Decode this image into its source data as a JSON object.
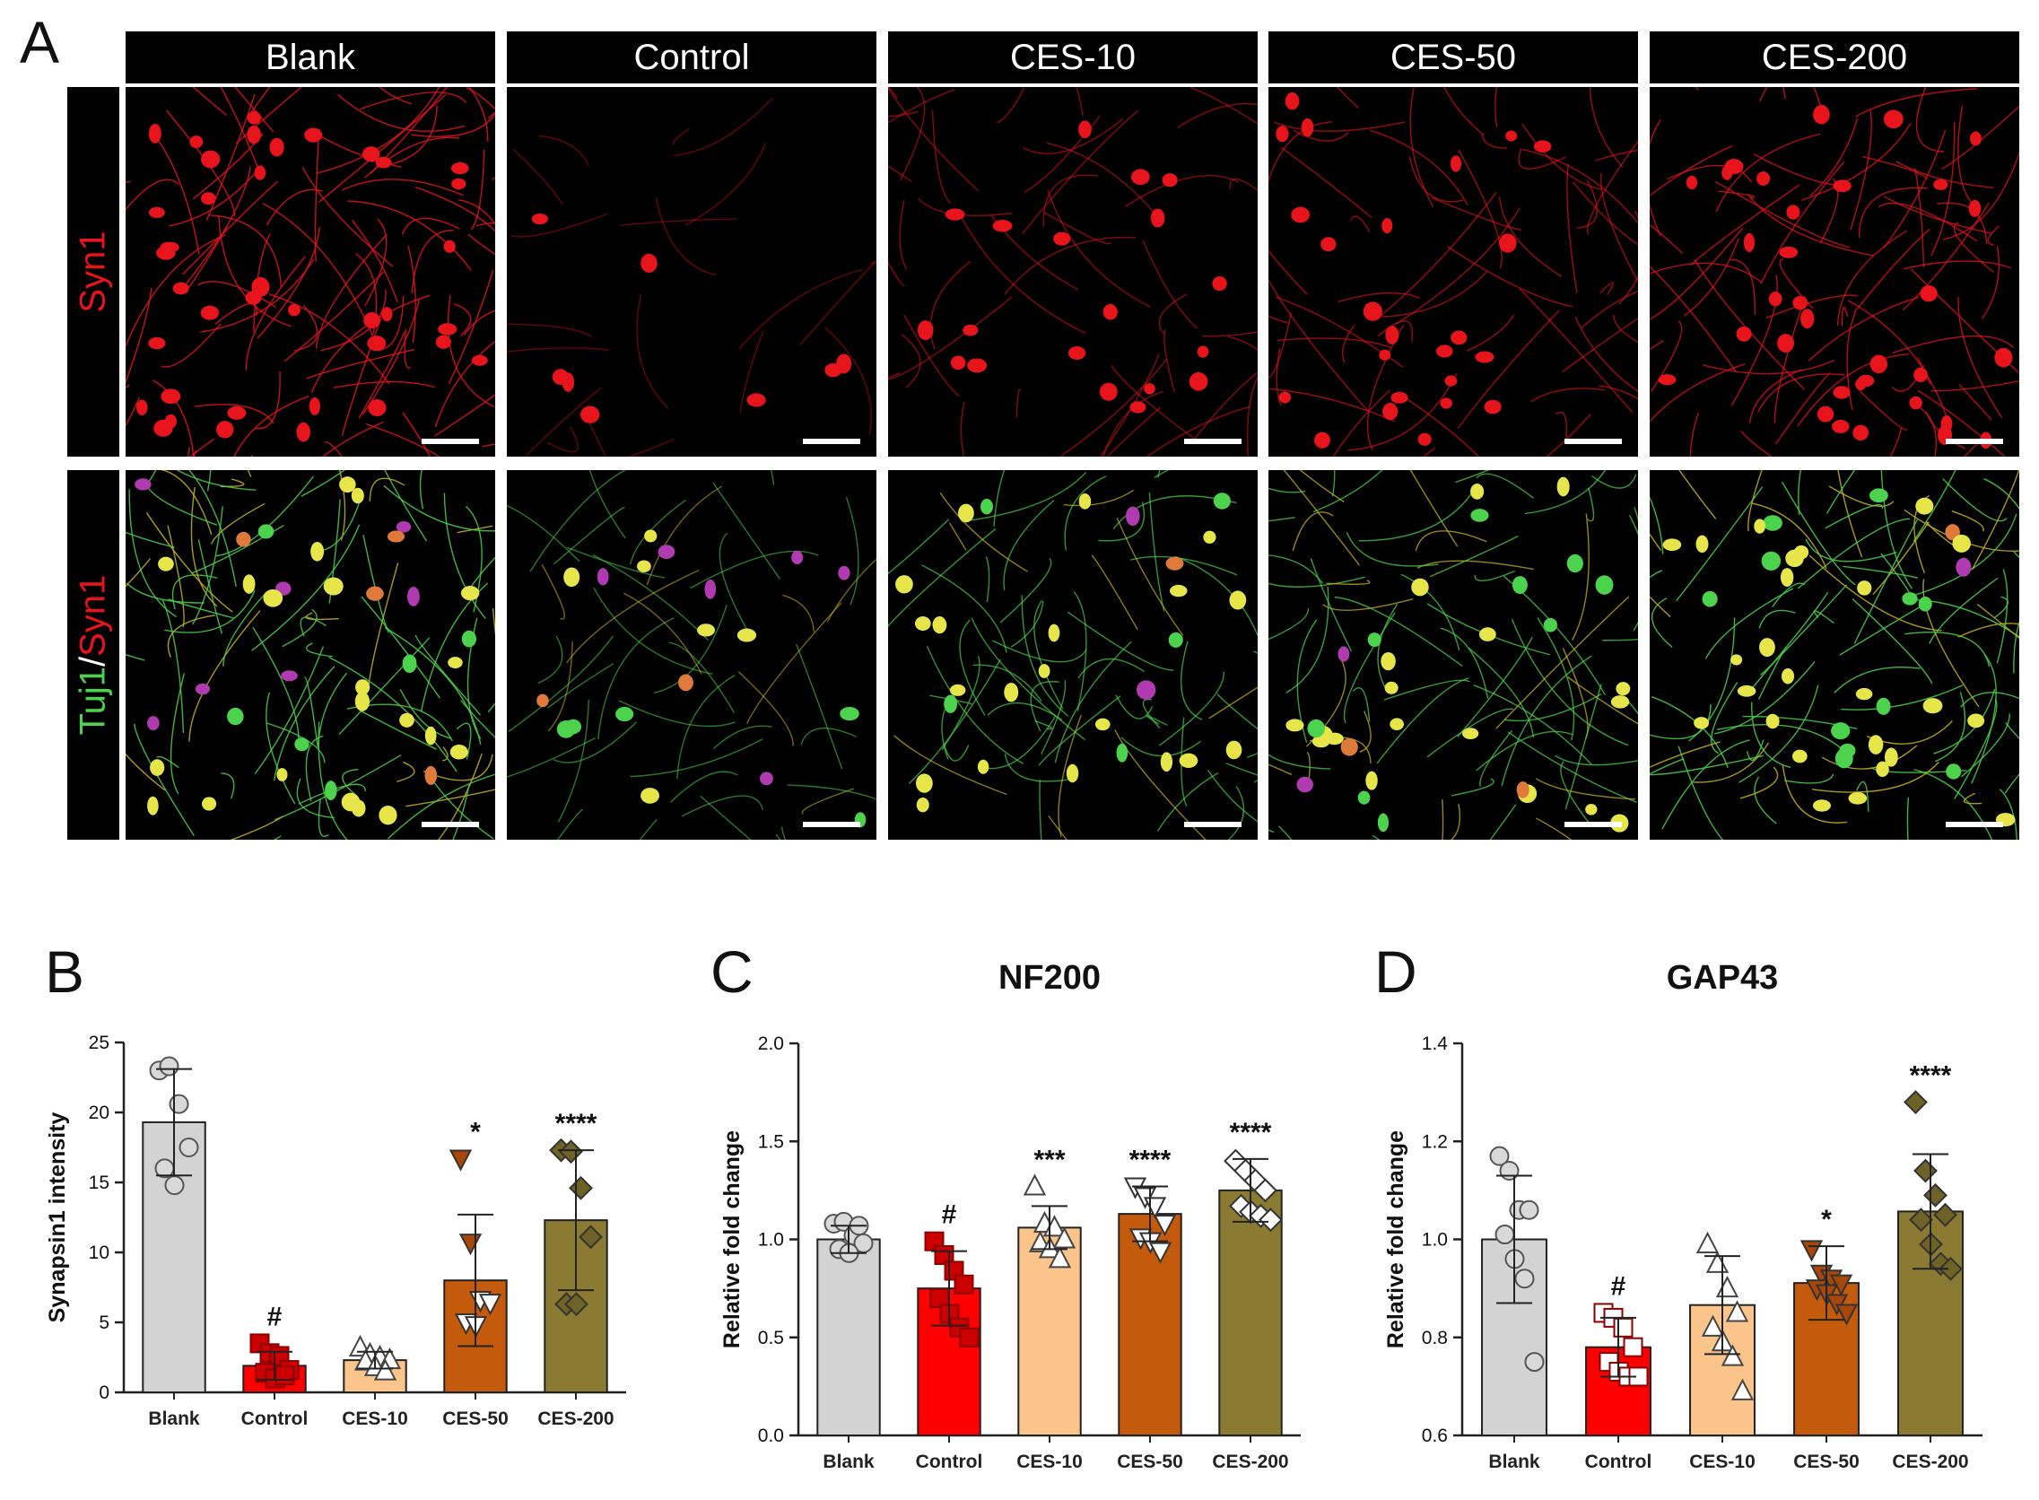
{
  "figure": {
    "panel_a_label": "A",
    "columns": [
      "Blank",
      "Control",
      "CES-10",
      "CES-50",
      "CES-200"
    ],
    "rows": [
      {
        "label_parts": [
          {
            "text": "Syn1",
            "color": "#e8141c"
          }
        ]
      },
      {
        "label_parts": [
          {
            "text": "Tuj1",
            "color": "#4cd24c"
          },
          {
            "text": "/",
            "color": "#ffffff"
          },
          {
            "text": "Syn1",
            "color": "#e8141c"
          }
        ]
      }
    ],
    "micrograph_relative_density": {
      "syn1": [
        1.0,
        0.12,
        0.45,
        0.6,
        0.85
      ],
      "merge": [
        1.0,
        0.45,
        0.7,
        0.8,
        1.0
      ]
    },
    "colors": {
      "blank": "#d3d3d3",
      "control": "#ff0000",
      "ces10": "#fbc48a",
      "ces50": "#c35a0c",
      "ces200": "#8a7a32",
      "syn1_stain": "#e8141c",
      "tuj1_stain": "#4cd24c"
    }
  },
  "chart_data": [
    {
      "panel": "B",
      "type": "bar",
      "title": "",
      "xlabel": "",
      "ylabel": "Synapsin1 intensity",
      "ylim": [
        0,
        25
      ],
      "yticks": [
        "0",
        "5",
        "10",
        "15",
        "20",
        "25"
      ],
      "categories": [
        "Blank",
        "Control",
        "CES-10",
        "CES-50",
        "CES-200"
      ],
      "values": [
        19.3,
        1.9,
        2.3,
        8.0,
        12.3
      ],
      "errors": [
        3.8,
        1.0,
        0.6,
        4.7,
        5.0
      ],
      "points": [
        [
          23.0,
          23.3,
          20.6,
          17.5,
          16.0,
          14.8
        ],
        [
          3.5,
          2.8,
          2.6,
          1.6,
          1.4,
          1.0,
          1.2
        ],
        [
          3.2,
          2.7,
          2.5,
          2.3,
          2.2,
          1.8,
          1.5
        ],
        [
          16.7,
          10.7,
          6.6,
          6.4,
          5.0,
          4.8
        ],
        [
          17.3,
          17.2,
          14.6,
          11.1,
          6.3,
          6.3
        ]
      ],
      "markers": [
        "circle",
        "square",
        "triangle-up",
        "triangle-down",
        "diamond"
      ],
      "marker_fill": [
        "light",
        "full",
        "light",
        "mixed",
        "full"
      ],
      "annotations": [
        "",
        "#",
        "",
        "*",
        "****"
      ],
      "grid": false
    },
    {
      "panel": "C",
      "type": "bar",
      "title": "NF200",
      "xlabel": "",
      "ylabel": "Relative fold change",
      "ylim": [
        0,
        2.0
      ],
      "yticks": [
        "0.0",
        "0.5",
        "1.0",
        "1.5",
        "2.0"
      ],
      "categories": [
        "Blank",
        "Control",
        "CES-10",
        "CES-50",
        "CES-200"
      ],
      "values": [
        1.0,
        0.75,
        1.06,
        1.13,
        1.25
      ],
      "errors": [
        0.07,
        0.19,
        0.11,
        0.14,
        0.16
      ],
      "points": [
        [
          1.08,
          1.09,
          1.02,
          0.98,
          0.95,
          0.93,
          1.07
        ],
        [
          0.99,
          0.92,
          0.84,
          0.77,
          0.7,
          0.62,
          0.55,
          0.5
        ],
        [
          1.27,
          1.08,
          1.06,
          1.0,
          0.98,
          0.95,
          0.9
        ],
        [
          1.27,
          1.22,
          1.17,
          1.08,
          1.01,
          0.99,
          0.94
        ],
        [
          1.4,
          1.35,
          1.3,
          1.25,
          1.17,
          1.14,
          1.12,
          1.1
        ]
      ],
      "markers": [
        "circle",
        "square",
        "triangle-up",
        "triangle-down",
        "diamond"
      ],
      "marker_fill": [
        "light",
        "full",
        "light",
        "light",
        "light"
      ],
      "annotations": [
        "",
        "#",
        "***",
        "****",
        "****"
      ],
      "grid": false
    },
    {
      "panel": "D",
      "type": "bar",
      "title": "GAP43",
      "xlabel": "",
      "ylabel": "Relative fold change",
      "ylim": [
        0.6,
        1.4
      ],
      "yticks": [
        "0.6",
        "0.8",
        "1.0",
        "1.2",
        "1.4"
      ],
      "categories": [
        "Blank",
        "Control",
        "CES-10",
        "CES-50",
        "CES-200"
      ],
      "values": [
        1.0,
        0.78,
        0.866,
        0.911,
        1.057
      ],
      "errors": [
        0.13,
        0.06,
        0.1,
        0.075,
        0.117
      ],
      "points": [
        [
          1.17,
          1.14,
          1.06,
          1.06,
          1.01,
          0.96,
          0.92,
          0.75
        ],
        [
          0.85,
          0.84,
          0.82,
          0.78,
          0.75,
          0.73,
          0.72,
          0.72
        ],
        [
          0.99,
          0.95,
          0.9,
          0.85,
          0.82,
          0.79,
          0.76,
          0.69
        ],
        [
          0.98,
          0.93,
          0.92,
          0.91,
          0.9,
          0.89,
          0.87,
          0.85
        ],
        [
          1.28,
          1.14,
          1.09,
          1.05,
          1.04,
          0.99,
          0.95,
          0.94
        ]
      ],
      "markers": [
        "circle",
        "square",
        "triangle-up",
        "triangle-down",
        "diamond"
      ],
      "marker_fill": [
        "light",
        "light",
        "light",
        "full",
        "full"
      ],
      "annotations": [
        "",
        "#",
        "",
        "*",
        "****"
      ],
      "grid": false
    }
  ]
}
